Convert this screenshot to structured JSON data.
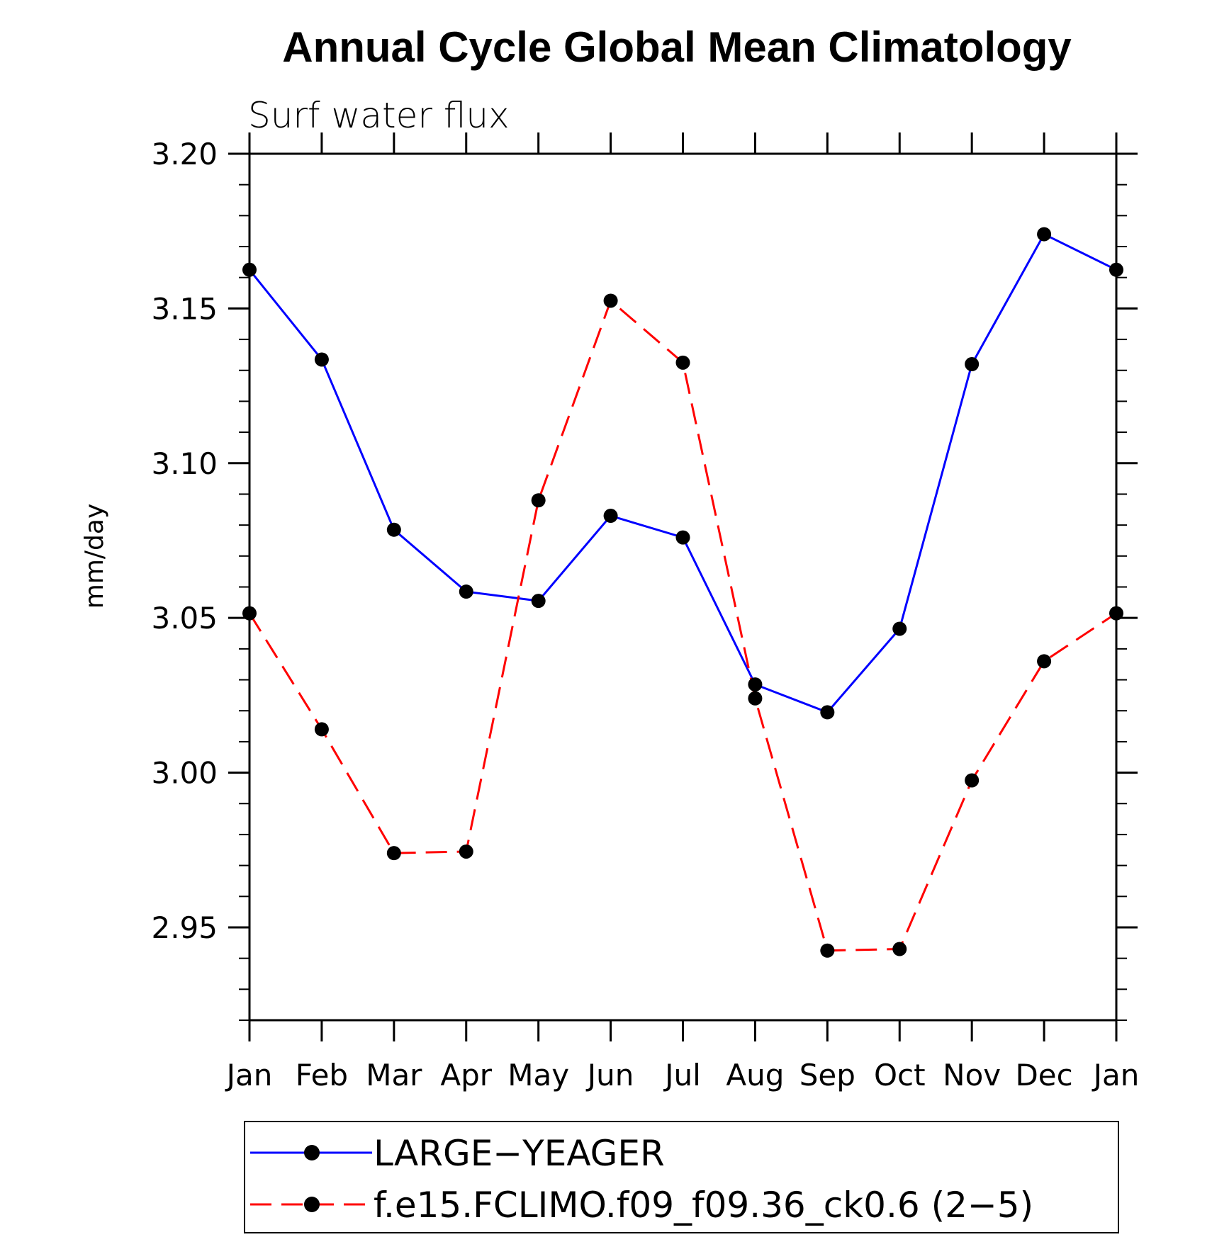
{
  "chart_data": {
    "type": "line",
    "title": "Annual Cycle Global Mean Climatology",
    "subtitle": "Surf water flux",
    "ylabel": "mm/day",
    "xlabel": "",
    "categories": [
      "Jan",
      "Feb",
      "Mar",
      "Apr",
      "May",
      "Jun",
      "Jul",
      "Aug",
      "Sep",
      "Oct",
      "Nov",
      "Dec",
      "Jan"
    ],
    "ylim": [
      2.92,
      3.2
    ],
    "yticks": [
      "3.20",
      "3.15",
      "3.10",
      "3.05",
      "3.00",
      "2.95"
    ],
    "ytick_values": [
      3.2,
      3.15,
      3.1,
      3.05,
      3.0,
      2.95
    ],
    "series": [
      {
        "name": "LARGE−YEAGER",
        "color": "#0000ff",
        "style": "solid",
        "values": [
          3.1625,
          3.1335,
          3.0785,
          3.0585,
          3.0555,
          3.083,
          3.076,
          3.0285,
          3.0195,
          3.0465,
          3.132,
          3.174,
          3.1625
        ]
      },
      {
        "name": "f.e15.FCLIMO.f09_f09.36_ck0.6 (2−5)",
        "color": "#ff0000",
        "style": "dashed",
        "values": [
          3.0515,
          3.014,
          2.974,
          2.9745,
          3.088,
          3.1525,
          3.1325,
          3.024,
          2.9425,
          2.943,
          2.9975,
          3.036,
          3.0515
        ]
      }
    ],
    "legend_position": "bottom"
  }
}
